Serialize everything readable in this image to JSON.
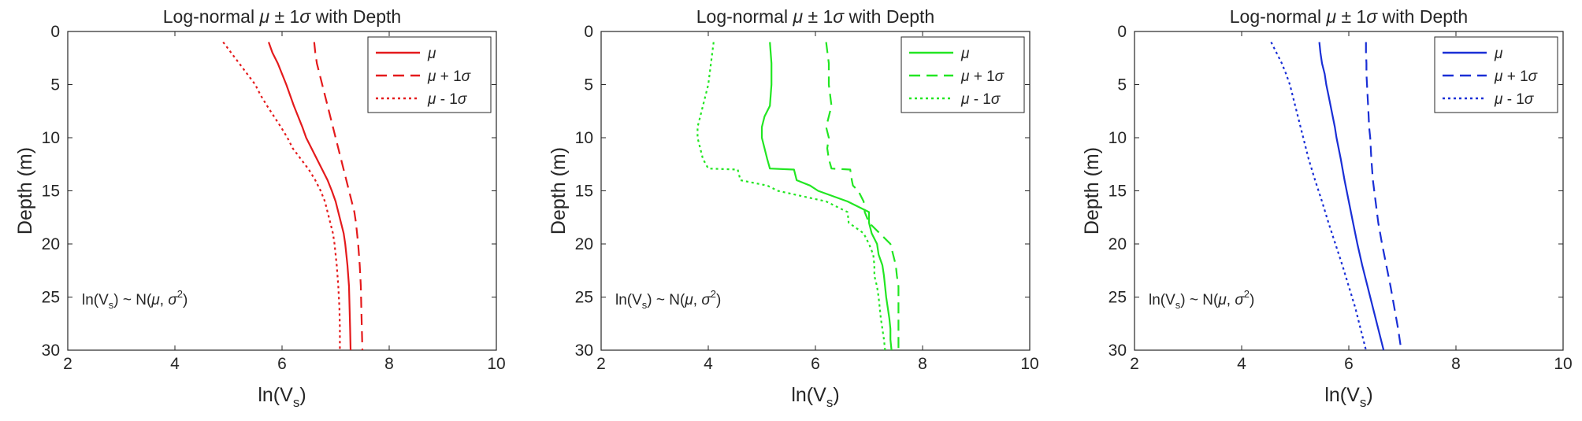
{
  "figure": {
    "title_prefix": "Log-normal ",
    "title_suffix": " with Depth",
    "greek_mu": "μ",
    "greek_sigma": "σ",
    "plus_minus_one": " ± 1"
  },
  "chart_data": [
    {
      "type": "line",
      "title": "Log-normal μ ± 1σ with Depth",
      "xlabel": "ln(Vs)",
      "ylabel": "Depth (m)",
      "xlim": [
        2,
        10
      ],
      "ylim": [
        0,
        30
      ],
      "y_reversed": true,
      "xticks": [
        "2",
        "4",
        "6",
        "8",
        "10"
      ],
      "yticks": [
        "0",
        "5",
        "10",
        "15",
        "20",
        "25",
        "30"
      ],
      "legend": [
        "μ",
        "μ + 1σ",
        "μ - 1σ"
      ],
      "annotation": "ln(Vs) ~ N(μ, σ²)",
      "color": "#e41a1c",
      "depth": [
        1,
        2,
        3,
        4,
        5,
        6,
        7,
        8,
        9,
        10,
        11,
        12,
        13,
        14,
        15,
        16,
        17,
        18,
        19,
        20,
        22,
        24,
        26,
        28,
        30
      ],
      "series": [
        {
          "name": "μ",
          "values": [
            5.75,
            5.82,
            5.92,
            6.0,
            6.08,
            6.15,
            6.22,
            6.3,
            6.38,
            6.45,
            6.55,
            6.65,
            6.75,
            6.85,
            6.93,
            7.0,
            7.05,
            7.1,
            7.15,
            7.18,
            7.22,
            7.25,
            7.26,
            7.27,
            7.28
          ]
        },
        {
          "name": "μ + 1σ",
          "values": [
            6.6,
            6.62,
            6.65,
            6.7,
            6.75,
            6.8,
            6.85,
            6.9,
            6.95,
            7.0,
            7.05,
            7.1,
            7.15,
            7.2,
            7.25,
            7.3,
            7.35,
            7.38,
            7.4,
            7.42,
            7.45,
            7.47,
            7.48,
            7.49,
            7.5
          ]
        },
        {
          "name": "μ - 1σ",
          "values": [
            4.9,
            5.05,
            5.2,
            5.35,
            5.5,
            5.6,
            5.72,
            5.85,
            5.98,
            6.1,
            6.2,
            6.35,
            6.5,
            6.62,
            6.72,
            6.8,
            6.85,
            6.9,
            6.95,
            6.98,
            7.02,
            7.05,
            7.07,
            7.08,
            7.08
          ]
        }
      ]
    },
    {
      "type": "line",
      "title": "Log-normal μ ± 1σ with Depth",
      "xlabel": "ln(Vs)",
      "ylabel": "Depth (m)",
      "xlim": [
        2,
        10
      ],
      "ylim": [
        0,
        30
      ],
      "y_reversed": true,
      "xticks": [
        "2",
        "4",
        "6",
        "8",
        "10"
      ],
      "yticks": [
        "0",
        "5",
        "10",
        "15",
        "20",
        "25",
        "30"
      ],
      "legend": [
        "μ",
        "μ + 1σ",
        "μ - 1σ"
      ],
      "annotation": "ln(Vs) ~ N(μ, σ²)",
      "color": "#22e622",
      "depth": [
        1,
        3,
        5,
        7,
        8,
        9,
        10,
        11,
        12,
        12.9,
        13,
        14,
        14.5,
        15,
        16,
        17,
        18,
        19,
        20,
        21,
        22,
        23,
        24,
        25,
        26,
        27,
        28,
        29,
        30
      ],
      "series": [
        {
          "name": "μ",
          "values": [
            5.15,
            5.18,
            5.18,
            5.15,
            5.05,
            5.0,
            5.0,
            5.05,
            5.1,
            5.15,
            5.6,
            5.65,
            5.9,
            6.05,
            6.6,
            7.0,
            7.0,
            7.05,
            7.15,
            7.18,
            7.25,
            7.28,
            7.3,
            7.32,
            7.35,
            7.38,
            7.4,
            7.4,
            7.42
          ]
        },
        {
          "name": "μ + 1σ",
          "values": [
            6.2,
            6.25,
            6.25,
            6.3,
            6.25,
            6.2,
            6.25,
            6.22,
            6.25,
            6.3,
            6.65,
            6.68,
            6.7,
            6.8,
            6.9,
            6.92,
            7.0,
            7.2,
            7.4,
            7.45,
            7.5,
            7.52,
            7.55,
            7.55,
            7.55,
            7.55,
            7.55,
            7.55,
            7.55
          ]
        },
        {
          "name": "μ - 1σ",
          "values": [
            4.1,
            4.05,
            4.0,
            3.9,
            3.85,
            3.8,
            3.8,
            3.85,
            3.9,
            4.0,
            4.55,
            4.6,
            5.1,
            5.3,
            6.2,
            6.6,
            6.62,
            6.9,
            7.0,
            7.08,
            7.1,
            7.1,
            7.15,
            7.18,
            7.2,
            7.22,
            7.25,
            7.28,
            7.3
          ]
        }
      ]
    },
    {
      "type": "line",
      "title": "Log-normal μ ± 1σ with Depth",
      "xlabel": "ln(Vs)",
      "ylabel": "Depth (m)",
      "xlim": [
        2,
        10
      ],
      "ylim": [
        0,
        30
      ],
      "y_reversed": true,
      "xticks": [
        "2",
        "4",
        "6",
        "8",
        "10"
      ],
      "yticks": [
        "0",
        "5",
        "10",
        "15",
        "20",
        "25",
        "30"
      ],
      "legend": [
        "μ",
        "μ + 1σ",
        "μ - 1σ"
      ],
      "annotation": "ln(Vs) ~ N(μ, σ²)",
      "color": "#1a2fd6",
      "depth": [
        1,
        2,
        3,
        4,
        5,
        6,
        7,
        8,
        9,
        10,
        12,
        14,
        16,
        18,
        20,
        22,
        24,
        26,
        28,
        30
      ],
      "series": [
        {
          "name": "μ",
          "values": [
            5.45,
            5.47,
            5.5,
            5.55,
            5.58,
            5.62,
            5.66,
            5.7,
            5.74,
            5.77,
            5.85,
            5.92,
            6.0,
            6.08,
            6.16,
            6.25,
            6.35,
            6.45,
            6.55,
            6.65
          ]
        },
        {
          "name": "μ + 1σ",
          "values": [
            6.32,
            6.32,
            6.33,
            6.33,
            6.34,
            6.35,
            6.36,
            6.37,
            6.38,
            6.4,
            6.42,
            6.45,
            6.5,
            6.55,
            6.62,
            6.7,
            6.78,
            6.85,
            6.92,
            6.98
          ]
        },
        {
          "name": "μ - 1σ",
          "values": [
            4.55,
            4.65,
            4.75,
            4.83,
            4.9,
            4.95,
            5.0,
            5.05,
            5.1,
            5.15,
            5.25,
            5.37,
            5.5,
            5.62,
            5.75,
            5.88,
            6.0,
            6.12,
            6.22,
            6.32
          ]
        }
      ]
    }
  ]
}
